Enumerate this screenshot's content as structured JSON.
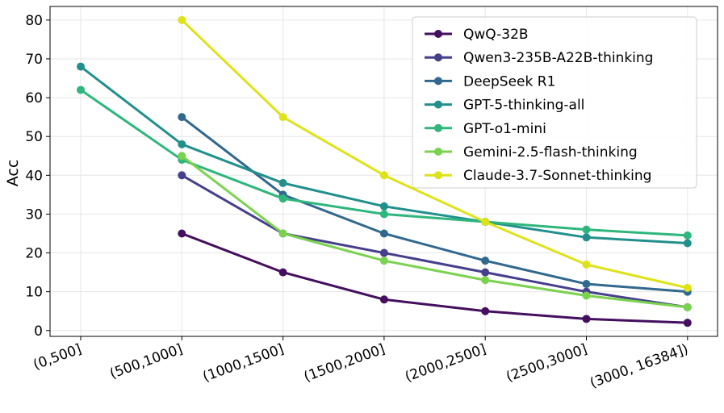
{
  "chart_data": {
    "type": "line",
    "categories": [
      "(0,500]",
      "(500,1000]",
      "(1000,1500]",
      "(1500,2000]",
      "(2000,2500]",
      "(2500,3000]",
      "(3000, 16384])"
    ],
    "ylabel": "Acc",
    "xlabel": "",
    "title": "",
    "ylim": [
      -1.5,
      83.5
    ],
    "yticks": [
      0,
      10,
      20,
      30,
      40,
      50,
      60,
      70,
      80
    ],
    "grid": true,
    "legend_position": "top-right",
    "series": [
      {
        "name": "QwQ-32B",
        "color": "#440f5e",
        "values": [
          null,
          25,
          15,
          8,
          5,
          3,
          2
        ]
      },
      {
        "name": "Qwen3-235B-A22B-thinking",
        "color": "#453f8c",
        "values": [
          null,
          40,
          25,
          20,
          15,
          10,
          6
        ]
      },
      {
        "name": "DeepSeek R1",
        "color": "#31688e",
        "values": [
          null,
          55,
          35,
          25,
          18,
          12,
          10
        ]
      },
      {
        "name": "GPT-5-thinking-all",
        "color": "#21908d",
        "values": [
          68,
          48,
          38,
          32,
          28,
          24,
          22.5
        ]
      },
      {
        "name": "GPT-o1-mini",
        "color": "#2eb67c",
        "values": [
          62,
          44,
          34,
          30,
          28,
          26,
          24.5
        ]
      },
      {
        "name": "Gemini-2.5-flash-thinking",
        "color": "#7bd24f",
        "values": [
          null,
          45,
          25,
          18,
          13,
          9,
          6
        ]
      },
      {
        "name": "Claude-3.7-Sonnet-thinking",
        "color": "#dde318",
        "values": [
          null,
          80,
          55,
          40,
          28,
          17,
          11
        ]
      }
    ]
  }
}
